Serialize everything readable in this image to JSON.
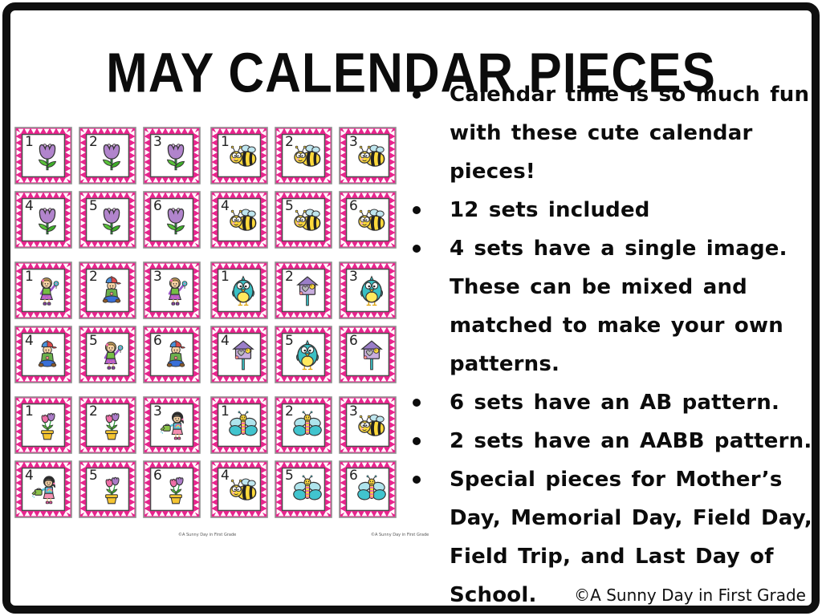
{
  "title": "MAY CALENDAR PIECES",
  "credit": "©A Sunny Day in First Grade",
  "watermark_left": "©A Sunny Day in First Grade",
  "watermark_right": "©A Sunny Day in First Grade",
  "bullets": [
    "Calendar time is so much fun\nwith these cute calendar\npieces!",
    "12 sets included",
    "4 sets have a single image.\nThese can be mixed and\nmatched to make your own\npatterns.",
    "6 sets have an AB pattern.",
    "2 sets have an AABB pattern.",
    "Special pieces for Mother’s\nDay, Memorial Day, Field Day,\nField Trip, and Last Day of\nSchool."
  ],
  "colors": {
    "frame_black": "#0f0f0f",
    "card_border_pink": "#e9258e",
    "card_outline_grey": "#8f8f8f",
    "text_black": "#0c0c0c"
  },
  "cards": {
    "sets": [
      {
        "name": "tulips-single",
        "pattern": "single",
        "cells": [
          {
            "n": "1",
            "icon": "tulip-icon"
          },
          {
            "n": "2",
            "icon": "tulip-icon"
          },
          {
            "n": "3",
            "icon": "tulip-icon"
          },
          {
            "n": "4",
            "icon": "tulip-icon"
          },
          {
            "n": "5",
            "icon": "tulip-icon"
          },
          {
            "n": "6",
            "icon": "tulip-icon"
          }
        ]
      },
      {
        "name": "bees-single",
        "pattern": "single",
        "cells": [
          {
            "n": "1",
            "icon": "bee-icon"
          },
          {
            "n": "2",
            "icon": "bee-icon"
          },
          {
            "n": "3",
            "icon": "bee-icon"
          },
          {
            "n": "4",
            "icon": "bee-icon"
          },
          {
            "n": "5",
            "icon": "bee-icon"
          },
          {
            "n": "6",
            "icon": "bee-icon"
          }
        ]
      },
      {
        "name": "kids-ab",
        "pattern": "AB",
        "cells": [
          {
            "n": "1",
            "icon": "girl-flower-icon"
          },
          {
            "n": "2",
            "icon": "boy-sitting-icon"
          },
          {
            "n": "3",
            "icon": "girl-flower-icon"
          },
          {
            "n": "4",
            "icon": "boy-sitting-icon"
          },
          {
            "n": "5",
            "icon": "girl-flower-icon"
          },
          {
            "n": "6",
            "icon": "boy-sitting-icon"
          }
        ]
      },
      {
        "name": "birds-ab",
        "pattern": "AB",
        "cells": [
          {
            "n": "1",
            "icon": "bird-icon"
          },
          {
            "n": "2",
            "icon": "birdhouse-icon"
          },
          {
            "n": "3",
            "icon": "bird-icon"
          },
          {
            "n": "4",
            "icon": "birdhouse-icon"
          },
          {
            "n": "5",
            "icon": "bird-icon"
          },
          {
            "n": "6",
            "icon": "birdhouse-icon"
          }
        ]
      },
      {
        "name": "flowers-aabb",
        "pattern": "AABB",
        "cells": [
          {
            "n": "1",
            "icon": "flowerpot-icon"
          },
          {
            "n": "2",
            "icon": "flowerpot-icon"
          },
          {
            "n": "3",
            "icon": "watering-girl-icon"
          },
          {
            "n": "4",
            "icon": "watering-girl-icon"
          },
          {
            "n": "5",
            "icon": "flowerpot-icon"
          },
          {
            "n": "6",
            "icon": "flowerpot-icon"
          }
        ]
      },
      {
        "name": "butterflies-aabb",
        "pattern": "AABB",
        "cells": [
          {
            "n": "1",
            "icon": "butterfly-icon"
          },
          {
            "n": "2",
            "icon": "butterfly-icon"
          },
          {
            "n": "3",
            "icon": "bee-icon"
          },
          {
            "n": "4",
            "icon": "bee-icon"
          },
          {
            "n": "5",
            "icon": "butterfly-icon"
          },
          {
            "n": "6",
            "icon": "butterfly-icon"
          }
        ]
      }
    ]
  }
}
